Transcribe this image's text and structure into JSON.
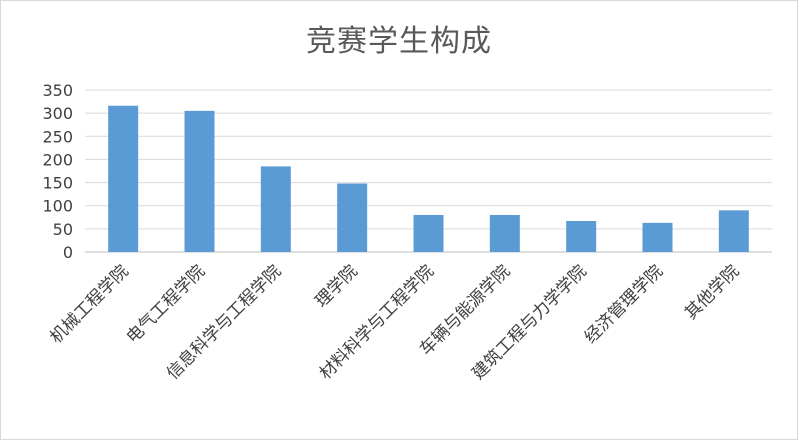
{
  "chart_data": {
    "type": "bar",
    "title": "竞赛学生构成",
    "xlabel": "",
    "ylabel": "",
    "categories": [
      "机械工程学院",
      "电气工程学院",
      "信息科学与工程学院",
      "理学院",
      "材料科学与工程学院",
      "车辆与能源学院",
      "建筑工程与力学学院",
      "经济管理学院",
      "其他学院"
    ],
    "values": [
      316,
      305,
      185,
      148,
      80,
      80,
      67,
      63,
      90
    ],
    "ylim": [
      0,
      350
    ],
    "yticks": [
      0,
      50,
      100,
      150,
      200,
      250,
      300,
      350
    ],
    "grid": true,
    "legend": "none",
    "bar_color": "#5b9bd5"
  }
}
